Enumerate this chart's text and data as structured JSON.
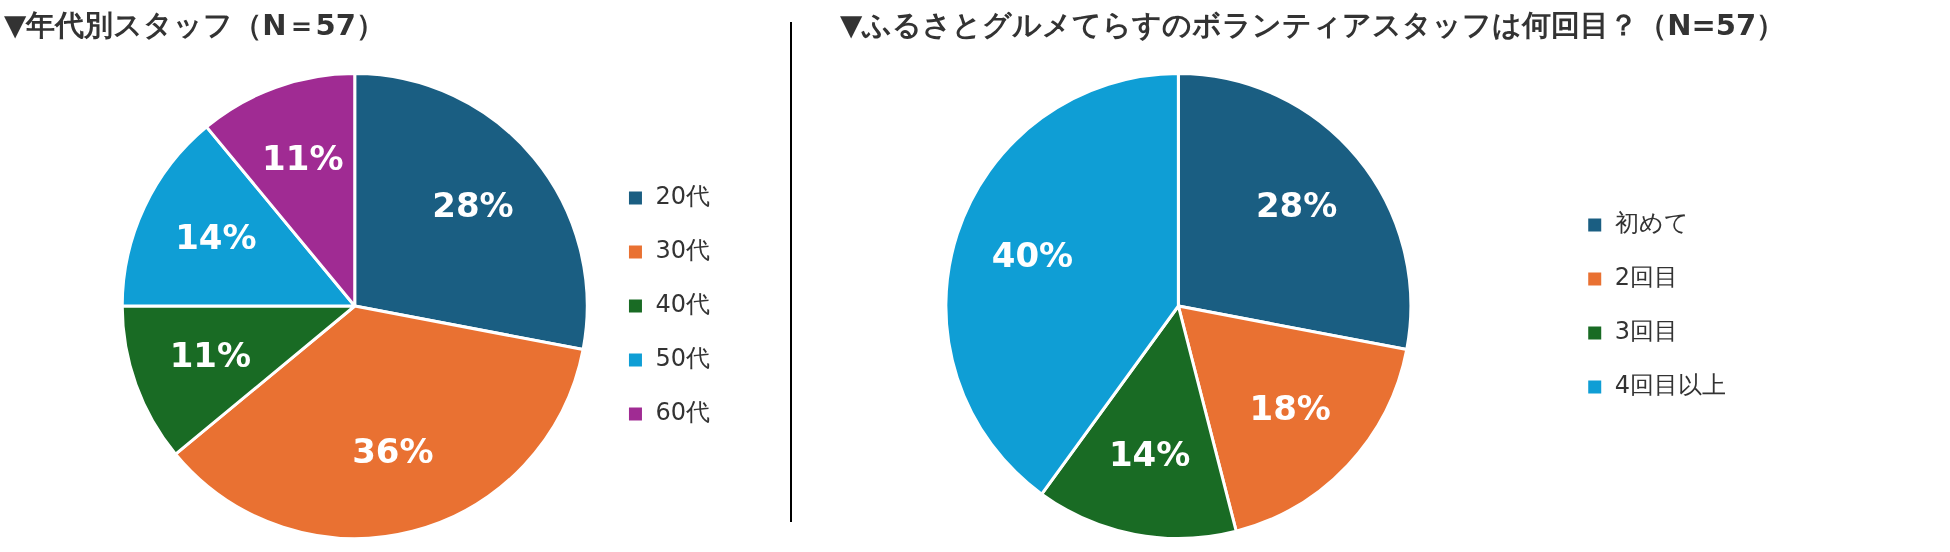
{
  "chart_data": [
    {
      "type": "pie",
      "title": "▼年代別スタッフ（N＝57）",
      "categories": [
        "20代",
        "30代",
        "40代",
        "50代",
        "60代"
      ],
      "values": [
        28,
        36,
        11,
        14,
        11
      ],
      "colors": [
        "#1a5e82",
        "#e97132",
        "#196b24",
        "#0f9ed5",
        "#a02b93"
      ],
      "legend": "right",
      "value_labels": [
        "28%",
        "36%",
        "11%",
        "14%",
        "11%"
      ]
    },
    {
      "type": "pie",
      "title": "▼ふるさとグルメてらすのボランティアスタッフは何回目？（N=57）",
      "categories": [
        "初めて",
        "2回目",
        "3回目",
        "4回目以上"
      ],
      "values": [
        28,
        18,
        14,
        40
      ],
      "colors": [
        "#1a5e82",
        "#e97132",
        "#196b24",
        "#0f9ed5"
      ],
      "legend": "right",
      "value_labels": [
        "28%",
        "18%",
        "14%",
        "40%"
      ]
    }
  ]
}
